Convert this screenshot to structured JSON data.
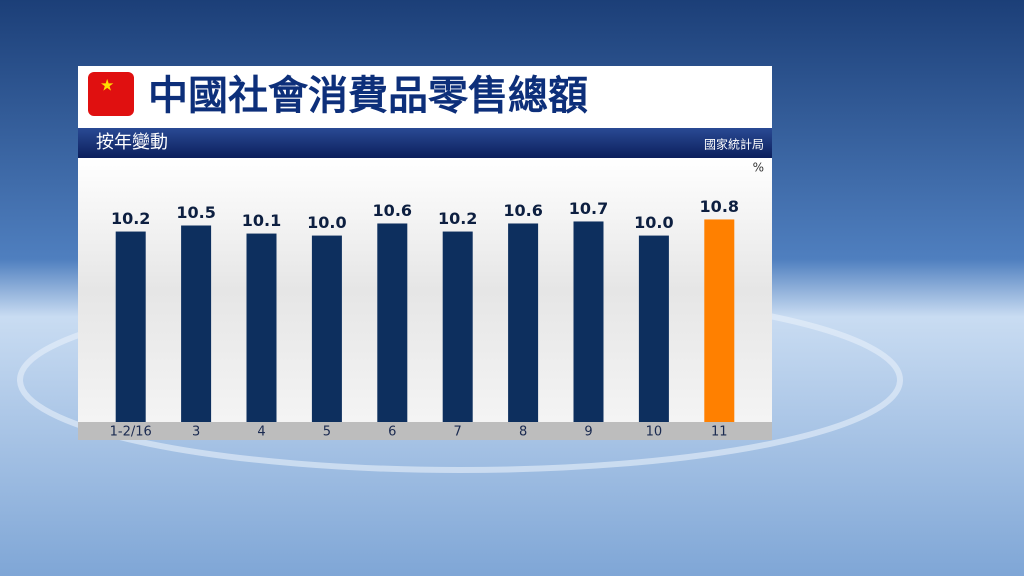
{
  "chart_data": {
    "type": "bar",
    "title": "中國社會消費品零售總額",
    "subtitle": "按年變動",
    "source": "國家統計局",
    "unit": "%",
    "categories": [
      "1-2/16",
      "3",
      "4",
      "5",
      "6",
      "7",
      "8",
      "9",
      "10",
      "11"
    ],
    "values": [
      10.2,
      10.5,
      10.1,
      10.0,
      10.6,
      10.2,
      10.6,
      10.7,
      10.0,
      10.8
    ],
    "value_labels": [
      "10.2",
      "10.5",
      "10.1",
      "10.0",
      "10.6",
      "10.2",
      "10.6",
      "10.7",
      "10.0",
      "10.8"
    ],
    "colors": [
      "#0d2f5e",
      "#0d2f5e",
      "#0d2f5e",
      "#0d2f5e",
      "#0d2f5e",
      "#0d2f5e",
      "#0d2f5e",
      "#0d2f5e",
      "#0d2f5e",
      "#ff8000"
    ],
    "ylim": [
      0.75,
      13.75
    ]
  }
}
